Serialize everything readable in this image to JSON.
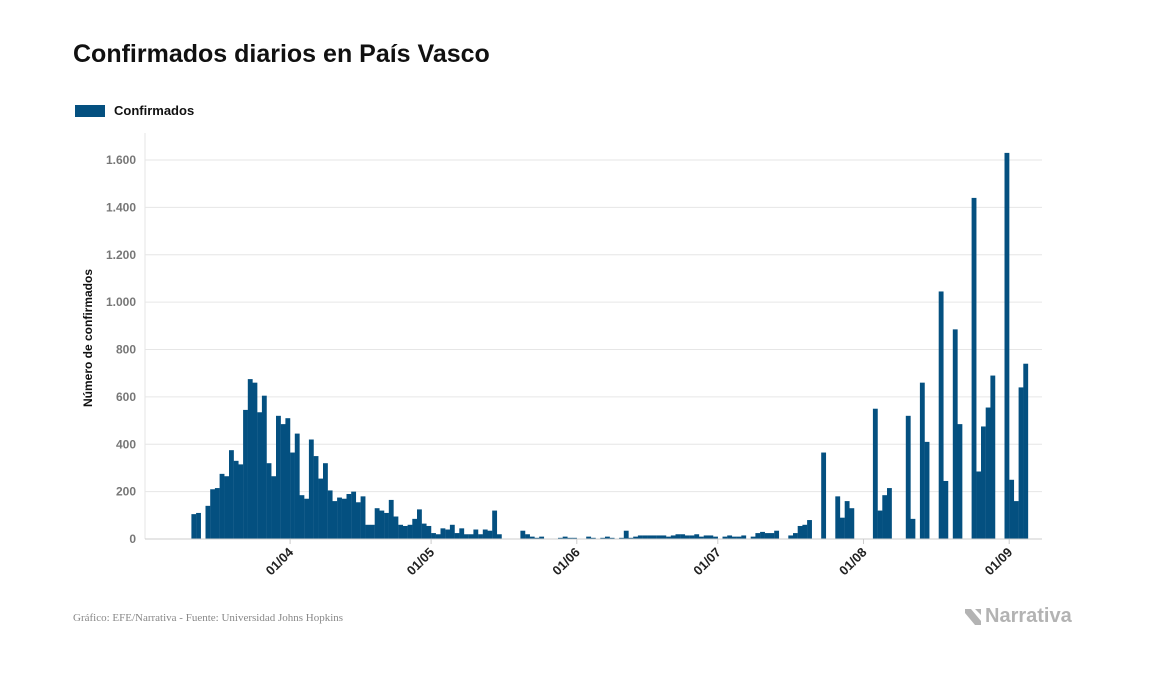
{
  "title": "Confirmados diarios en País Vasco",
  "source": "Gráfico: EFE/Narrativa - Fuente: Universidad Johns Hopkins",
  "brand": "Narrativa",
  "colors": {
    "bar": "#045080",
    "grid": "#e6e6e6",
    "axis": "#cccccc"
  },
  "chart_data": {
    "type": "bar",
    "title": "Confirmados diarios en País Vasco",
    "xlabel": "",
    "ylabel": "Número de confirmados",
    "ylim": [
      0,
      1700
    ],
    "grid": true,
    "legend_position": "top-left",
    "y_ticks": [
      0,
      200,
      400,
      600,
      800,
      1000,
      1200,
      1400,
      1600
    ],
    "y_tick_labels": [
      "0",
      "200",
      "400",
      "600",
      "800",
      "1.000",
      "1.200",
      "1.400",
      "1.600"
    ],
    "x_ticks": [
      {
        "label": "01/04",
        "index": 23
      },
      {
        "label": "01/05",
        "index": 53
      },
      {
        "label": "01/06",
        "index": 84
      },
      {
        "label": "01/07",
        "index": 114
      },
      {
        "label": "01/08",
        "index": 145
      },
      {
        "label": "01/09",
        "index": 176
      }
    ],
    "series": [
      {
        "name": "Confirmados",
        "values": [
          0,
          0,
          105,
          110,
          0,
          140,
          210,
          215,
          275,
          265,
          375,
          330,
          315,
          545,
          675,
          660,
          535,
          605,
          320,
          265,
          520,
          485,
          510,
          365,
          445,
          185,
          170,
          420,
          350,
          255,
          320,
          205,
          160,
          175,
          170,
          190,
          200,
          155,
          180,
          60,
          60,
          130,
          120,
          110,
          165,
          95,
          60,
          55,
          60,
          85,
          125,
          65,
          55,
          25,
          20,
          45,
          40,
          60,
          25,
          45,
          20,
          20,
          40,
          20,
          40,
          35,
          120,
          20,
          0,
          0,
          0,
          0,
          35,
          20,
          10,
          5,
          10,
          0,
          0,
          0,
          5,
          10,
          5,
          5,
          0,
          0,
          10,
          5,
          0,
          5,
          10,
          5,
          0,
          5,
          35,
          5,
          10,
          15,
          15,
          15,
          15,
          15,
          15,
          10,
          15,
          20,
          20,
          15,
          15,
          20,
          10,
          15,
          15,
          10,
          0,
          10,
          15,
          10,
          10,
          15,
          0,
          10,
          25,
          30,
          25,
          25,
          35,
          0,
          0,
          15,
          25,
          55,
          60,
          80,
          0,
          0,
          365,
          0,
          0,
          180,
          90,
          160,
          130,
          0,
          0,
          0,
          0,
          550,
          120,
          185,
          215,
          0,
          0,
          0,
          520,
          85,
          0,
          660,
          410,
          0,
          0,
          1045,
          245,
          0,
          885,
          485,
          0,
          0,
          1440,
          285,
          475,
          555,
          690,
          0,
          0,
          1630,
          250,
          160,
          640,
          740
        ]
      }
    ]
  }
}
